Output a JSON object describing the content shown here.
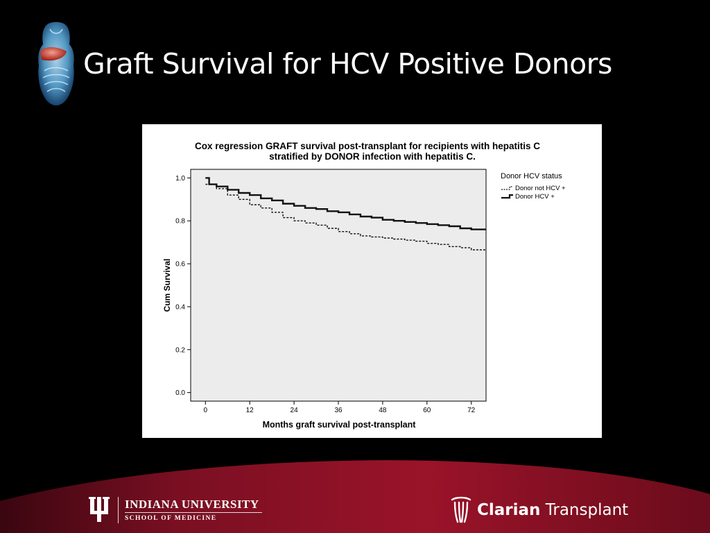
{
  "slide": {
    "title": "Graft Survival for HCV Positive Donors"
  },
  "colors": {
    "background": "#000000",
    "footer_band": "#8e1127",
    "chart_plot_area": "#ececec",
    "series_solid": "#111111",
    "series_dashed": "#111111"
  },
  "chart_data": {
    "type": "line",
    "title": "Cox regression GRAFT survival post-transplant for recipients with hepatitis C",
    "subtitle": "stratified by DONOR infection with hepatitis C.",
    "xlabel": "Months graft survival post-transplant",
    "ylabel": "Cum Survival",
    "xlim": [
      -4,
      76
    ],
    "ylim": [
      -0.04,
      1.04
    ],
    "x_ticks": [
      0,
      12,
      24,
      36,
      48,
      60,
      72
    ],
    "y_ticks": [
      0.0,
      0.2,
      0.4,
      0.6,
      0.8,
      1.0
    ],
    "x_tick_labels": [
      "0",
      "12",
      "24",
      "36",
      "48",
      "60",
      "72"
    ],
    "y_tick_labels": [
      "0.0",
      "0.2",
      "0.4",
      "0.6",
      "0.8",
      "1.0"
    ],
    "legend_title": "Donor HCV status",
    "legend_position": "right",
    "grid": false,
    "step": true,
    "series": [
      {
        "name": "Donor not HCV +",
        "style": "dashed",
        "points": [
          [
            0,
            0.97
          ],
          [
            3,
            0.95
          ],
          [
            6,
            0.92
          ],
          [
            9,
            0.9
          ],
          [
            12,
            0.875
          ],
          [
            15,
            0.86
          ],
          [
            18,
            0.84
          ],
          [
            21,
            0.815
          ],
          [
            24,
            0.8
          ],
          [
            27,
            0.79
          ],
          [
            30,
            0.78
          ],
          [
            33,
            0.765
          ],
          [
            36,
            0.75
          ],
          [
            39,
            0.74
          ],
          [
            42,
            0.73
          ],
          [
            45,
            0.725
          ],
          [
            48,
            0.72
          ],
          [
            51,
            0.715
          ],
          [
            54,
            0.71
          ],
          [
            57,
            0.705
          ],
          [
            60,
            0.695
          ],
          [
            63,
            0.69
          ],
          [
            66,
            0.68
          ],
          [
            69,
            0.675
          ],
          [
            72,
            0.665
          ],
          [
            76,
            0.665
          ]
        ]
      },
      {
        "name": "Donor HCV +",
        "style": "solid",
        "points": [
          [
            0,
            1.0
          ],
          [
            1,
            0.97
          ],
          [
            3,
            0.96
          ],
          [
            6,
            0.945
          ],
          [
            9,
            0.93
          ],
          [
            12,
            0.92
          ],
          [
            15,
            0.905
          ],
          [
            18,
            0.895
          ],
          [
            21,
            0.88
          ],
          [
            24,
            0.87
          ],
          [
            27,
            0.86
          ],
          [
            30,
            0.855
          ],
          [
            33,
            0.845
          ],
          [
            36,
            0.84
          ],
          [
            39,
            0.83
          ],
          [
            42,
            0.82
          ],
          [
            45,
            0.815
          ],
          [
            48,
            0.805
          ],
          [
            51,
            0.8
          ],
          [
            54,
            0.795
          ],
          [
            57,
            0.79
          ],
          [
            60,
            0.785
          ],
          [
            63,
            0.78
          ],
          [
            66,
            0.775
          ],
          [
            69,
            0.765
          ],
          [
            72,
            0.76
          ],
          [
            76,
            0.76
          ]
        ]
      }
    ]
  },
  "footer": {
    "university_name": "INDIANA UNIVERSITY",
    "school_name": "SCHOOL OF MEDICINE",
    "partner_brand_bold": "Clarian",
    "partner_brand_rest": " Transplant"
  }
}
